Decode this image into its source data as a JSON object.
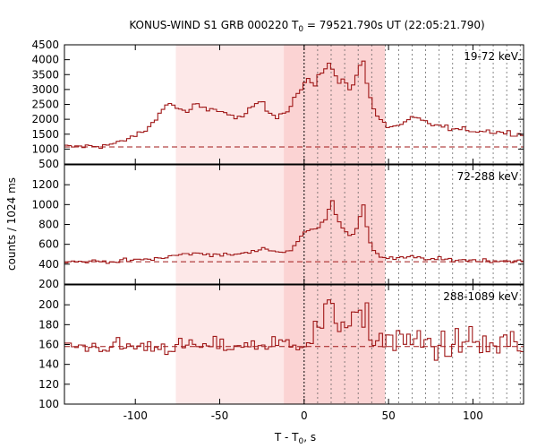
{
  "chart_data": {
    "type": "line",
    "title_main": "KONUS-WIND S1 GRB 000220 T",
    "title_sub": "0",
    "title_rest": " = 79521.790s UT (22:05:21.790)",
    "xlabel_main": "T - T",
    "xlabel_sub": "0",
    "xlabel_rest": ", s",
    "ylabel": "counts / 1024 ms",
    "xlim": [
      -142,
      130
    ],
    "x_ticks": [
      -100,
      -50,
      0,
      50,
      100
    ],
    "x_tick_labels": [
      "-100",
      "-50",
      "0",
      "50",
      "100"
    ],
    "shaded_intervals": [
      {
        "start": -76,
        "end": 48,
        "color": "#fde8e8"
      },
      {
        "start": -12,
        "end": 48,
        "color": "#fbd3d3"
      }
    ],
    "vertical_dotted_lines": [
      0,
      8,
      16,
      24,
      32,
      40,
      48,
      56,
      64,
      72,
      80,
      88,
      96,
      104,
      112,
      120,
      128
    ],
    "panels": [
      {
        "band": "19-72 keV",
        "ylim": [
          500,
          4500
        ],
        "y_ticks": [
          500,
          1000,
          1500,
          2000,
          2500,
          3000,
          3500,
          4000,
          4500
        ],
        "background_level": 1070,
        "profile": [
          [
            -142,
            1070
          ],
          [
            -120,
            1110
          ],
          [
            -110,
            1200
          ],
          [
            -100,
            1450
          ],
          [
            -92,
            1700
          ],
          [
            -86,
            2200
          ],
          [
            -80,
            2550
          ],
          [
            -75,
            2400
          ],
          [
            -70,
            2200
          ],
          [
            -64,
            2500
          ],
          [
            -58,
            2300
          ],
          [
            -52,
            2350
          ],
          [
            -46,
            2200
          ],
          [
            -40,
            2000
          ],
          [
            -32,
            2300
          ],
          [
            -26,
            2650
          ],
          [
            -22,
            2300
          ],
          [
            -16,
            2100
          ],
          [
            -10,
            2300
          ],
          [
            -6,
            2700
          ],
          [
            -3,
            2900
          ],
          [
            0,
            3200
          ],
          [
            3,
            3400
          ],
          [
            6,
            3000
          ],
          [
            9,
            3500
          ],
          [
            12,
            3700
          ],
          [
            15,
            3900
          ],
          [
            18,
            3500
          ],
          [
            21,
            3200
          ],
          [
            24,
            3400
          ],
          [
            27,
            3000
          ],
          [
            30,
            3300
          ],
          [
            33,
            3800
          ],
          [
            35,
            4000
          ],
          [
            37,
            3300
          ],
          [
            40,
            2500
          ],
          [
            44,
            2000
          ],
          [
            50,
            1750
          ],
          [
            58,
            1800
          ],
          [
            64,
            2050
          ],
          [
            70,
            1950
          ],
          [
            78,
            1800
          ],
          [
            90,
            1650
          ],
          [
            110,
            1600
          ],
          [
            130,
            1500
          ]
        ],
        "noise": 60
      },
      {
        "band": "72-288 keV",
        "ylim": [
          200,
          1400
        ],
        "y_ticks": [
          200,
          400,
          600,
          800,
          1000,
          1200
        ],
        "background_level": 425,
        "profile": [
          [
            -142,
            425
          ],
          [
            -110,
            430
          ],
          [
            -90,
            450
          ],
          [
            -78,
            480
          ],
          [
            -70,
            505
          ],
          [
            -58,
            505
          ],
          [
            -46,
            490
          ],
          [
            -30,
            520
          ],
          [
            -24,
            570
          ],
          [
            -16,
            520
          ],
          [
            -8,
            540
          ],
          [
            -3,
            640
          ],
          [
            0,
            720
          ],
          [
            5,
            750
          ],
          [
            10,
            800
          ],
          [
            14,
            900
          ],
          [
            16,
            1080
          ],
          [
            19,
            900
          ],
          [
            22,
            800
          ],
          [
            26,
            680
          ],
          [
            30,
            700
          ],
          [
            33,
            850
          ],
          [
            35,
            1020
          ],
          [
            37,
            800
          ],
          [
            40,
            560
          ],
          [
            46,
            470
          ],
          [
            55,
            455
          ],
          [
            64,
            470
          ],
          [
            75,
            450
          ],
          [
            100,
            440
          ],
          [
            130,
            430
          ]
        ],
        "noise": 14
      },
      {
        "band": "288-1089 keV",
        "ylim": [
          100,
          220
        ],
        "y_ticks": [
          100,
          120,
          140,
          160,
          180,
          200
        ],
        "background_level": 158,
        "profile": [
          [
            -142,
            158
          ],
          [
            -60,
            158
          ],
          [
            -20,
            160
          ],
          [
            0,
            162
          ],
          [
            8,
            175
          ],
          [
            14,
            190
          ],
          [
            20,
            188
          ],
          [
            26,
            185
          ],
          [
            32,
            182
          ],
          [
            36,
            178
          ],
          [
            44,
            168
          ],
          [
            60,
            162
          ],
          [
            90,
            160
          ],
          [
            130,
            158
          ]
        ],
        "noise": 6,
        "noise_after_zero": 14
      }
    ]
  }
}
